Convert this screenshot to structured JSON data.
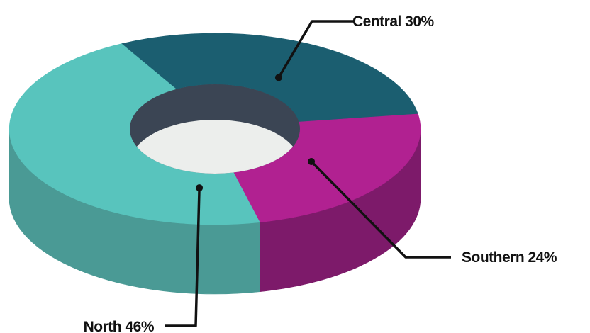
{
  "chart_data": {
    "type": "pie",
    "style": "3d-donut",
    "title": "",
    "slices": [
      {
        "label": "Central",
        "value": 30,
        "display": "Central 30%",
        "color": "#1b5e70",
        "side_color": "#164b5a"
      },
      {
        "label": "Southern",
        "value": 24,
        "display": "Southern 24%",
        "color": "#b12191",
        "side_color": "#7d1a6a"
      },
      {
        "label": "North",
        "value": 46,
        "display": "North 46%",
        "color": "#58c4bd",
        "side_color": "#4a9a95"
      }
    ]
  }
}
